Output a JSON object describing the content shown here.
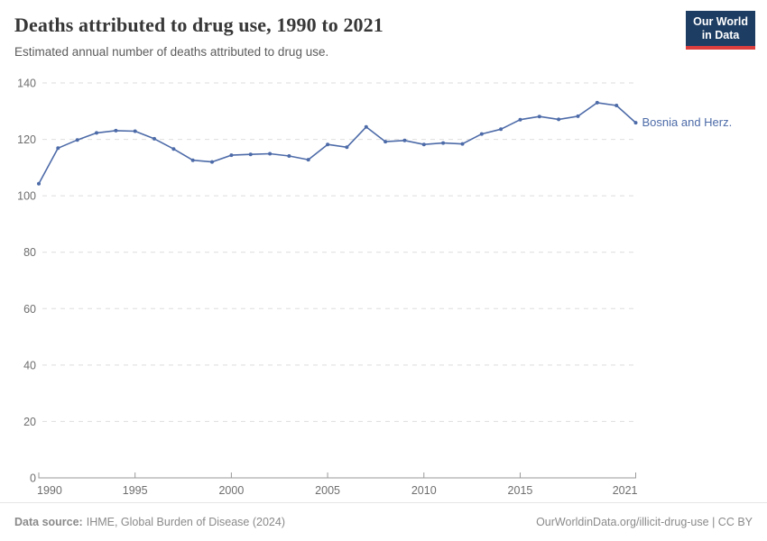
{
  "header": {
    "title": "Deaths attributed to drug use, 1990 to 2021",
    "subtitle": "Estimated annual number of deaths attributed to drug use.",
    "logo": {
      "line1": "Our World",
      "line2": "in Data"
    }
  },
  "chart_data": {
    "type": "line",
    "title": "Deaths attributed to drug use, 1990 to 2021",
    "subtitle": "Estimated annual number of deaths attributed to drug use.",
    "x": [
      1990,
      1991,
      1992,
      1993,
      1994,
      1995,
      1996,
      1997,
      1998,
      1999,
      2000,
      2001,
      2002,
      2003,
      2004,
      2005,
      2006,
      2007,
      2008,
      2009,
      2010,
      2011,
      2012,
      2013,
      2014,
      2015,
      2016,
      2017,
      2018,
      2019,
      2020,
      2021
    ],
    "series": [
      {
        "name": "Bosnia and Herz.",
        "color": "#4d6ba8",
        "values": [
          104.3,
          116.9,
          119.8,
          122.3,
          123.1,
          122.9,
          120.2,
          116.6,
          112.6,
          112.0,
          114.4,
          114.7,
          114.9,
          114.1,
          112.8,
          118.2,
          117.2,
          124.4,
          119.2,
          119.6,
          118.2,
          118.7,
          118.4,
          121.9,
          123.6,
          127.0,
          128.1,
          127.1,
          128.2,
          133.0,
          132.0,
          125.9
        ]
      }
    ],
    "xlabel": "",
    "ylabel": "",
    "ylim": [
      0,
      140
    ],
    "xlim": [
      1990,
      2021
    ],
    "yticks": [
      0,
      20,
      40,
      60,
      80,
      100,
      120,
      140
    ],
    "xticks": [
      1990,
      1995,
      2000,
      2005,
      2010,
      2015,
      2021
    ],
    "grid": "horizontal-dashed",
    "legend_position": "end-of-line-label",
    "end_label": "Bosnia and Herz."
  },
  "footer": {
    "source_label": "Data source:",
    "source_text": "IHME, Global Burden of Disease (2024)",
    "link_text": "OurWorldinData.org/illicit-drug-use",
    "divider": " | ",
    "license_text": "CC BY"
  },
  "colors": {
    "line": "#4d6ba8",
    "logo_navy": "#1d3d63",
    "logo_red": "#dc3e3e",
    "gridline": "#dedede",
    "axis": "#999999",
    "tick_label": "#6e6e6e"
  }
}
